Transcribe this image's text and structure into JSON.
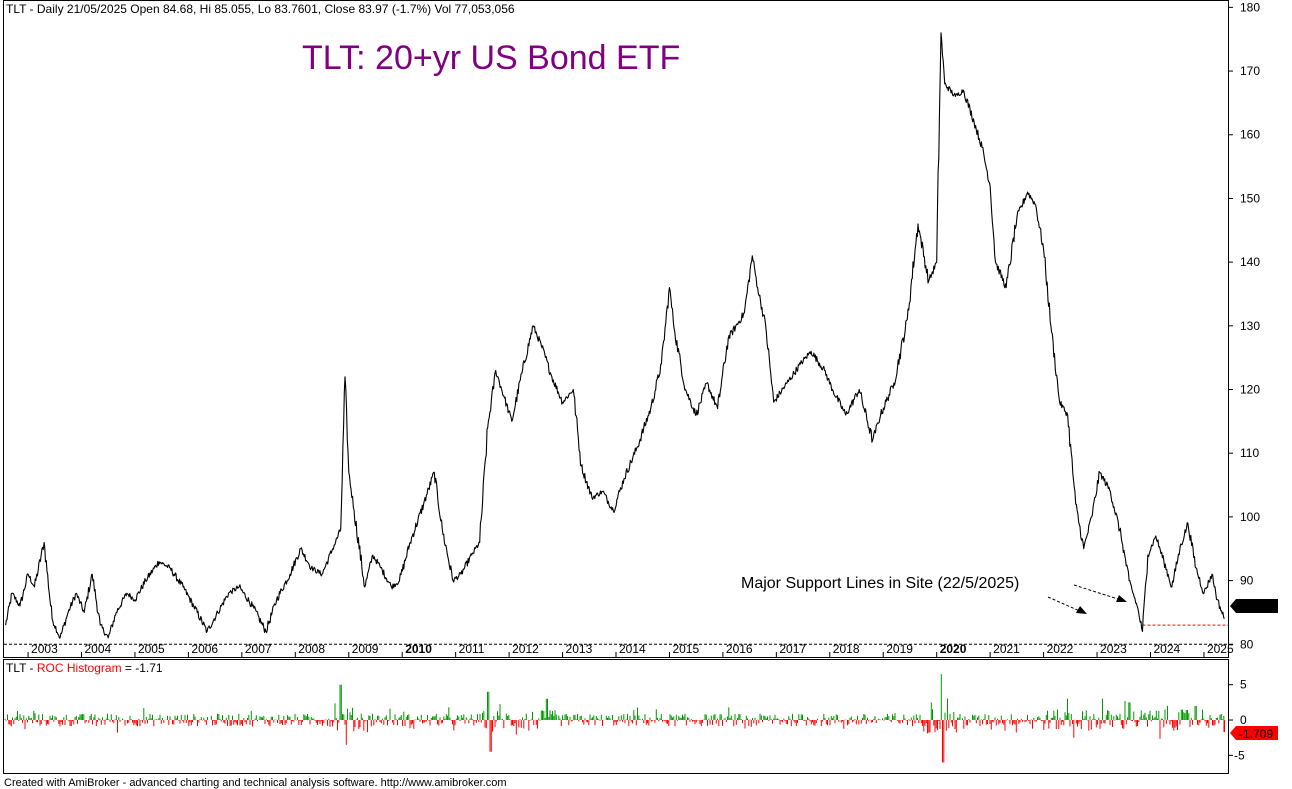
{
  "header": {
    "price_info": "TLT - Daily 21/05/2025 Open 84.68, Hi 85.055, Lo 83.7601, Close 83.97 (-1.7%) Vol 77,053,056",
    "roc_prefix": "TLT - ",
    "roc_name": "ROC Histogram",
    "roc_value": " = -1.71"
  },
  "title": "TLT: 20+yr US Bond ETF",
  "annotation": "Major Support Lines in Site (22/5/2025)",
  "footer": "Created with AmiBroker - advanced charting and technical analysis software. http://www.amibroker.com",
  "last_price_label": "83.97",
  "last_roc_label": "-1.709",
  "colors": {
    "title": "#800080",
    "price_line": "#000000",
    "roc_positive": "#009900",
    "roc_negative": "#ff0000",
    "roc_label_red": "#ff0000",
    "support_line": "#ff0000",
    "roc_header_red": "#ff0000"
  },
  "chart_data": [
    {
      "type": "line",
      "name": "price",
      "x_ticks": [
        "2003",
        "2004",
        "2005",
        "2006",
        "2007",
        "2008",
        "2009",
        "2010",
        "2011",
        "2012",
        "2013",
        "2014",
        "2015",
        "2016",
        "2017",
        "2018",
        "2019",
        "2020",
        "2021",
        "2022",
        "2023",
        "2024",
        "2025"
      ],
      "bold_x_ticks": [
        "2010",
        "2020"
      ],
      "y_ticks": [
        80,
        90,
        100,
        110,
        120,
        130,
        140,
        150,
        160,
        170,
        180
      ],
      "ylim": [
        78,
        181
      ],
      "xlim": [
        2002.55,
        2025.45
      ],
      "points": [
        [
          2002.58,
          83
        ],
        [
          2002.7,
          88
        ],
        [
          2002.85,
          86
        ],
        [
          2003.0,
          91
        ],
        [
          2003.12,
          89
        ],
        [
          2003.3,
          96
        ],
        [
          2003.45,
          84
        ],
        [
          2003.6,
          81
        ],
        [
          2003.75,
          85
        ],
        [
          2003.9,
          88
        ],
        [
          2004.05,
          85
        ],
        [
          2004.2,
          91
        ],
        [
          2004.35,
          83
        ],
        [
          2004.5,
          81
        ],
        [
          2004.65,
          85
        ],
        [
          2004.85,
          88
        ],
        [
          2005.0,
          87
        ],
        [
          2005.2,
          90
        ],
        [
          2005.45,
          93
        ],
        [
          2005.65,
          92
        ],
        [
          2005.9,
          89
        ],
        [
          2006.1,
          86
        ],
        [
          2006.35,
          82
        ],
        [
          2006.55,
          85
        ],
        [
          2006.75,
          88
        ],
        [
          2006.95,
          89
        ],
        [
          2007.2,
          86
        ],
        [
          2007.45,
          82
        ],
        [
          2007.65,
          87
        ],
        [
          2007.9,
          91
        ],
        [
          2008.1,
          95
        ],
        [
          2008.3,
          92
        ],
        [
          2008.5,
          91
        ],
        [
          2008.7,
          95
        ],
        [
          2008.85,
          98
        ],
        [
          2008.93,
          122
        ],
        [
          2009.0,
          107
        ],
        [
          2009.1,
          101
        ],
        [
          2009.3,
          89
        ],
        [
          2009.45,
          94
        ],
        [
          2009.6,
          92
        ],
        [
          2009.8,
          89
        ],
        [
          2009.95,
          90
        ],
        [
          2010.15,
          96
        ],
        [
          2010.4,
          102
        ],
        [
          2010.6,
          107
        ],
        [
          2010.75,
          98
        ],
        [
          2010.95,
          90
        ],
        [
          2011.1,
          91
        ],
        [
          2011.3,
          94
        ],
        [
          2011.45,
          96
        ],
        [
          2011.6,
          114
        ],
        [
          2011.75,
          123
        ],
        [
          2011.9,
          119
        ],
        [
          2012.05,
          115
        ],
        [
          2012.25,
          123
        ],
        [
          2012.45,
          130
        ],
        [
          2012.6,
          127
        ],
        [
          2012.8,
          122
        ],
        [
          2013.0,
          118
        ],
        [
          2013.2,
          120
        ],
        [
          2013.35,
          108
        ],
        [
          2013.55,
          103
        ],
        [
          2013.75,
          104
        ],
        [
          2013.95,
          101
        ],
        [
          2014.15,
          106
        ],
        [
          2014.4,
          111
        ],
        [
          2014.65,
          117
        ],
        [
          2014.85,
          124
        ],
        [
          2015.0,
          136
        ],
        [
          2015.1,
          129
        ],
        [
          2015.3,
          120
        ],
        [
          2015.5,
          116
        ],
        [
          2015.7,
          121
        ],
        [
          2015.9,
          117
        ],
        [
          2016.1,
          128
        ],
        [
          2016.4,
          132
        ],
        [
          2016.55,
          141
        ],
        [
          2016.65,
          136
        ],
        [
          2016.8,
          130
        ],
        [
          2016.95,
          118
        ],
        [
          2017.2,
          121
        ],
        [
          2017.45,
          124
        ],
        [
          2017.65,
          126
        ],
        [
          2017.9,
          123
        ],
        [
          2018.05,
          120
        ],
        [
          2018.3,
          116
        ],
        [
          2018.55,
          120
        ],
        [
          2018.8,
          112
        ],
        [
          2018.95,
          116
        ],
        [
          2019.2,
          121
        ],
        [
          2019.45,
          131
        ],
        [
          2019.65,
          146
        ],
        [
          2019.85,
          137
        ],
        [
          2020.0,
          140
        ],
        [
          2020.08,
          176
        ],
        [
          2020.15,
          168
        ],
        [
          2020.35,
          166
        ],
        [
          2020.5,
          167
        ],
        [
          2020.7,
          162
        ],
        [
          2020.85,
          158
        ],
        [
          2021.0,
          152
        ],
        [
          2021.1,
          140
        ],
        [
          2021.3,
          136
        ],
        [
          2021.5,
          147
        ],
        [
          2021.7,
          151
        ],
        [
          2021.85,
          149
        ],
        [
          2022.0,
          142
        ],
        [
          2022.15,
          129
        ],
        [
          2022.3,
          118
        ],
        [
          2022.45,
          116
        ],
        [
          2022.6,
          102
        ],
        [
          2022.75,
          95
        ],
        [
          2022.9,
          100
        ],
        [
          2023.05,
          107
        ],
        [
          2023.25,
          104
        ],
        [
          2023.45,
          97
        ],
        [
          2023.6,
          90
        ],
        [
          2023.75,
          86
        ],
        [
          2023.85,
          82
        ],
        [
          2023.95,
          94
        ],
        [
          2024.1,
          97
        ],
        [
          2024.25,
          93
        ],
        [
          2024.4,
          89
        ],
        [
          2024.55,
          95
        ],
        [
          2024.7,
          99
        ],
        [
          2024.85,
          92
        ],
        [
          2025.0,
          88
        ],
        [
          2025.15,
          91
        ],
        [
          2025.25,
          87
        ],
        [
          2025.38,
          84
        ]
      ],
      "support_lines": [
        80,
        83
      ]
    },
    {
      "type": "bar",
      "name": "ROC Histogram",
      "y_ticks": [
        5,
        0,
        -5
      ],
      "ylim": [
        -7.5,
        8.5
      ],
      "last_value": -1.709,
      "spikes": [
        [
          2008.85,
          5
        ],
        [
          2008.95,
          -3.5
        ],
        [
          2011.6,
          4
        ],
        [
          2011.65,
          -4.5
        ],
        [
          2012.7,
          3
        ],
        [
          2019.9,
          2.5
        ],
        [
          2020.1,
          6.5
        ],
        [
          2020.12,
          -6
        ],
        [
          2022.45,
          3
        ],
        [
          2023.1,
          3
        ],
        [
          2023.6,
          2.5
        ],
        [
          2024.85,
          2
        ]
      ]
    }
  ]
}
